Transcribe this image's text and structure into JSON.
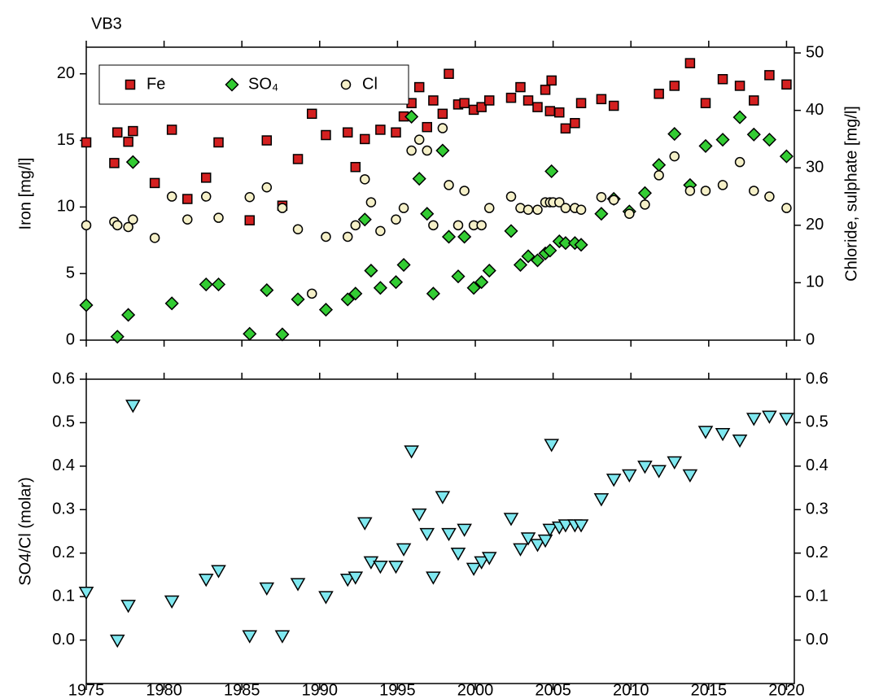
{
  "chart_data": [
    {
      "type": "scatter",
      "title": "VB3",
      "y_label": "Iron [mg/l]",
      "y2_label": "Chloride, sulphate [mg/l]",
      "xlim": [
        1975,
        2020.5
      ],
      "xticks": [
        1975,
        1980,
        1985,
        1990,
        1995,
        2000,
        2005,
        2010,
        2015,
        2020
      ],
      "ylim": [
        0,
        22
      ],
      "yticks": [
        0,
        5,
        10,
        15,
        20
      ],
      "y2lim": [
        0,
        51
      ],
      "y2ticks": [
        0,
        10,
        20,
        30,
        40,
        50
      ],
      "legend": "upper left",
      "series": [
        {
          "name": "Fe",
          "color": "#d42020",
          "marker": "square",
          "x": [
            1975.0,
            1976.8,
            1977.0,
            1977.7,
            1978.0,
            1979.4,
            1981.5,
            1980.5,
            1982.7,
            1983.5,
            1985.5,
            1986.6,
            1987.6,
            1988.6,
            1989.5,
            1990.4,
            1991.8,
            1992.3,
            1992.9,
            1993.9,
            1994.9,
            1995.4,
            1995.9,
            1996.4,
            1996.9,
            1997.3,
            1997.9,
            1998.3,
            1998.9,
            1999.3,
            1999.9,
            2000.4,
            2000.9,
            2002.3,
            2002.9,
            2003.4,
            2004.0,
            2004.5,
            2004.8,
            2004.9,
            2005.4,
            2005.8,
            2006.4,
            2006.8,
            2008.1,
            2008.9,
            2011.8,
            2012.8,
            2013.8,
            2014.8,
            2015.9,
            2017.0,
            2017.9,
            2018.9,
            2020.0
          ],
          "values": [
            14.85,
            13.3,
            15.6,
            14.9,
            15.7,
            11.8,
            10.6,
            15.8,
            12.2,
            14.85,
            9.0,
            15.0,
            10.1,
            13.6,
            17.0,
            15.4,
            15.6,
            13.0,
            15.1,
            15.8,
            15.6,
            16.8,
            17.8,
            19.0,
            16.0,
            18.0,
            17.0,
            20.0,
            17.7,
            17.8,
            17.3,
            17.5,
            18.0,
            18.2,
            19.0,
            18.0,
            17.5,
            18.8,
            17.2,
            19.5,
            17.1,
            15.9,
            16.3,
            17.8,
            18.1,
            17.6,
            18.5,
            19.1,
            20.8,
            17.8,
            19.6,
            19.1,
            18.0,
            19.9,
            19.2
          ]
        },
        {
          "name": "SO₄",
          "color": "#33cc33",
          "marker": "diamond",
          "axis": "y2",
          "x": [
            1975.0,
            1977.0,
            1977.7,
            1978.0,
            1980.5,
            1982.7,
            1983.5,
            1985.5,
            1986.6,
            1987.6,
            1988.6,
            1990.4,
            1991.8,
            1992.3,
            1992.9,
            1993.3,
            1993.9,
            1994.9,
            1995.4,
            1995.9,
            1996.4,
            1996.9,
            1997.3,
            1997.9,
            1998.3,
            1998.9,
            1999.3,
            1999.9,
            2000.4,
            2000.9,
            2002.3,
            2002.9,
            2003.4,
            2004.0,
            2004.5,
            2004.8,
            2004.9,
            2005.4,
            2005.8,
            2006.4,
            2006.8,
            2008.1,
            2008.9,
            2009.9,
            2010.9,
            2011.8,
            2012.8,
            2013.8,
            2014.8,
            2015.9,
            2017.0,
            2017.9,
            2018.9,
            2020.0
          ],
          "values": [
            6.1,
            0.6,
            4.4,
            31.0,
            6.4,
            9.7,
            9.7,
            1.1,
            8.7,
            1.0,
            7.1,
            5.3,
            7.1,
            8.1,
            21.0,
            12.1,
            9.1,
            10.1,
            13.1,
            38.9,
            28.1,
            22.0,
            8.1,
            33.0,
            18.0,
            11.1,
            18.0,
            9.1,
            10.1,
            12.1,
            19.0,
            13.1,
            14.6,
            13.9,
            15.1,
            15.6,
            29.4,
            17.2,
            16.9,
            16.9,
            16.6,
            22.0,
            24.6,
            22.4,
            25.6,
            30.5,
            35.9,
            27.0,
            33.8,
            34.9,
            38.8,
            35.8,
            34.9,
            32.0
          ]
        },
        {
          "name": "Cl",
          "color": "#f5f0c8",
          "marker": "circle",
          "axis": "y2",
          "x": [
            1975.0,
            1976.8,
            1977.0,
            1977.7,
            1978.0,
            1979.4,
            1980.5,
            1981.5,
            1982.7,
            1983.5,
            1985.5,
            1986.6,
            1987.6,
            1988.6,
            1989.5,
            1990.4,
            1991.8,
            1992.3,
            1992.9,
            1993.3,
            1993.9,
            1994.9,
            1995.4,
            1995.9,
            1996.4,
            1996.9,
            1997.3,
            1997.9,
            1998.3,
            1998.9,
            1999.3,
            1999.9,
            2000.4,
            2000.9,
            2002.3,
            2002.9,
            2003.4,
            2004.0,
            2004.5,
            2004.8,
            2005.0,
            2005.4,
            2005.8,
            2006.4,
            2006.8,
            2008.1,
            2008.9,
            2009.9,
            2010.9,
            2011.8,
            2012.8,
            2013.8,
            2014.8,
            2015.9,
            2017.0,
            2017.9,
            2018.9,
            2020.0
          ],
          "values": [
            20.0,
            20.6,
            20.0,
            19.7,
            21.0,
            17.8,
            25.0,
            21.0,
            25.0,
            21.3,
            24.9,
            26.6,
            23.0,
            19.3,
            8.1,
            18.0,
            18.0,
            20.0,
            28.0,
            24.0,
            19.0,
            21.0,
            23.0,
            33.0,
            34.9,
            33.0,
            20.0,
            36.9,
            27.0,
            20.0,
            26.0,
            20.0,
            20.0,
            23.0,
            25.0,
            23.0,
            22.7,
            22.7,
            24.0,
            24.0,
            24.0,
            24.0,
            23.0,
            23.0,
            22.7,
            24.9,
            24.4,
            22.0,
            23.6,
            28.7,
            32.0,
            26.0,
            26.0,
            27.0,
            31.0,
            26.0,
            25.0,
            23.0
          ]
        }
      ]
    },
    {
      "type": "scatter",
      "y_label": "SO4/Cl (molar)",
      "xlim": [
        1975,
        2020.5
      ],
      "xticks": [
        1975,
        1980,
        1985,
        1990,
        1995,
        2000,
        2005,
        2010,
        2015,
        2020
      ],
      "ylim": [
        -0.1,
        0.6
      ],
      "yticks": [
        {
          "value": 0,
          "label": "0.0"
        },
        0.1,
        0.2,
        0.3,
        0.4,
        0.5,
        0.6
      ],
      "y2lim": [
        -0.1,
        0.6
      ],
      "y2ticks": [
        {
          "value": 0,
          "label": "0.0"
        },
        0.1,
        0.2,
        0.3,
        0.4,
        0.5,
        0.6
      ],
      "series": [
        {
          "color": "#7fe8f0",
          "marker": "triangle-down",
          "x": [
            1975.0,
            1977.0,
            1977.7,
            1978.0,
            1980.5,
            1982.7,
            1983.5,
            1985.5,
            1986.6,
            1987.6,
            1988.6,
            1990.4,
            1991.8,
            1992.3,
            1992.9,
            1993.3,
            1993.9,
            1994.9,
            1995.4,
            1995.9,
            1996.4,
            1996.9,
            1997.3,
            1997.9,
            1998.3,
            1998.9,
            1999.3,
            1999.9,
            2000.4,
            2000.9,
            2002.3,
            2002.9,
            2003.4,
            2004.0,
            2004.5,
            2004.8,
            2004.9,
            2005.4,
            2005.8,
            2006.4,
            2006.8,
            2008.1,
            2008.9,
            2009.9,
            2010.9,
            2011.8,
            2012.8,
            2013.8,
            2014.8,
            2015.9,
            2017.0,
            2017.9,
            2018.9,
            2020.0
          ],
          "values": [
            0.11,
            0.0,
            0.08,
            0.54,
            0.09,
            0.14,
            0.16,
            0.01,
            0.12,
            0.01,
            0.13,
            0.1,
            0.14,
            0.145,
            0.27,
            0.18,
            0.17,
            0.17,
            0.21,
            0.435,
            0.29,
            0.245,
            0.145,
            0.33,
            0.245,
            0.2,
            0.255,
            0.165,
            0.18,
            0.19,
            0.28,
            0.21,
            0.235,
            0.22,
            0.23,
            0.255,
            0.45,
            0.26,
            0.265,
            0.265,
            0.265,
            0.325,
            0.37,
            0.38,
            0.4,
            0.39,
            0.41,
            0.38,
            0.48,
            0.475,
            0.46,
            0.51,
            0.515,
            0.51
          ]
        }
      ]
    }
  ]
}
